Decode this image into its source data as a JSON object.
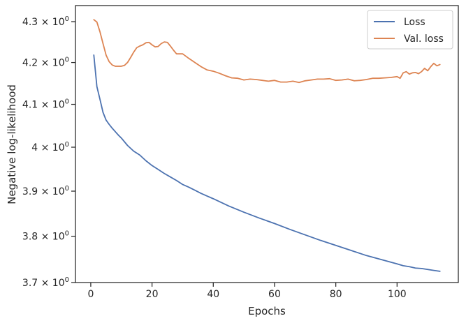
{
  "chart_data": {
    "type": "line",
    "xlabel": "Epochs",
    "ylabel": "Negative log-likelihood",
    "xlim": [
      -5,
      120
    ],
    "ylim": [
      3.7,
      4.34
    ],
    "yscale": "log",
    "grid": false,
    "legend_position": "top-right",
    "xticks": [
      0,
      20,
      40,
      60,
      80,
      100
    ],
    "xtick_labels": [
      "0",
      "20",
      "40",
      "60",
      "80",
      "100"
    ],
    "yticks": [
      {
        "value": 3.7,
        "mantissa": "3.7"
      },
      {
        "value": 3.8,
        "mantissa": "3.8"
      },
      {
        "value": 3.9,
        "mantissa": "3.9"
      },
      {
        "value": 4.0,
        "mantissa": "4"
      },
      {
        "value": 4.1,
        "mantissa": "4.1"
      },
      {
        "value": 4.2,
        "mantissa": "4.2"
      },
      {
        "value": 4.3,
        "mantissa": "4.3"
      }
    ],
    "ytick_base": "× 10",
    "ytick_exponent": "0",
    "series": [
      {
        "name": "Loss",
        "color": "#4c72b0",
        "x": [
          1,
          2,
          3,
          4,
          5,
          6,
          7,
          8,
          9,
          10,
          12,
          14,
          16,
          18,
          20,
          22,
          24,
          26,
          28,
          30,
          32,
          34,
          36,
          38,
          40,
          45,
          50,
          55,
          60,
          65,
          70,
          75,
          80,
          85,
          90,
          95,
          100,
          102,
          104,
          106,
          108,
          110,
          112,
          114
        ],
        "y": [
          4.218,
          4.142,
          4.112,
          4.081,
          4.063,
          4.053,
          4.044,
          4.036,
          4.028,
          4.021,
          4.004,
          3.991,
          3.982,
          3.969,
          3.958,
          3.949,
          3.94,
          3.932,
          3.924,
          3.915,
          3.909,
          3.902,
          3.895,
          3.889,
          3.883,
          3.867,
          3.853,
          3.84,
          3.828,
          3.815,
          3.803,
          3.791,
          3.78,
          3.769,
          3.758,
          3.749,
          3.74,
          3.736,
          3.734,
          3.731,
          3.73,
          3.728,
          3.726,
          3.724
        ]
      },
      {
        "name": "Val. loss",
        "color": "#dd8452",
        "x": [
          1,
          2,
          3,
          4,
          5,
          6,
          7,
          8,
          9,
          10,
          11,
          12,
          13,
          14,
          15,
          16,
          17,
          18,
          19,
          20,
          21,
          22,
          23,
          24,
          25,
          26,
          27,
          28,
          29,
          30,
          32,
          34,
          36,
          38,
          40,
          42,
          44,
          46,
          48,
          50,
          52,
          54,
          56,
          58,
          60,
          62,
          64,
          66,
          68,
          70,
          72,
          74,
          76,
          78,
          80,
          82,
          84,
          86,
          88,
          90,
          92,
          94,
          96,
          98,
          100,
          101,
          102,
          103,
          104,
          105,
          106,
          107,
          108,
          109,
          110,
          111,
          112,
          113,
          114
        ],
        "y": [
          4.305,
          4.299,
          4.275,
          4.246,
          4.218,
          4.202,
          4.194,
          4.191,
          4.191,
          4.191,
          4.193,
          4.2,
          4.212,
          4.225,
          4.236,
          4.24,
          4.243,
          4.248,
          4.249,
          4.243,
          4.238,
          4.239,
          4.246,
          4.25,
          4.249,
          4.24,
          4.23,
          4.221,
          4.221,
          4.221,
          4.21,
          4.2,
          4.19,
          4.182,
          4.179,
          4.174,
          4.168,
          4.163,
          4.162,
          4.158,
          4.16,
          4.159,
          4.157,
          4.155,
          4.157,
          4.153,
          4.153,
          4.155,
          4.152,
          4.156,
          4.158,
          4.16,
          4.16,
          4.161,
          4.157,
          4.158,
          4.16,
          4.156,
          4.157,
          4.159,
          4.162,
          4.162,
          4.163,
          4.164,
          4.166,
          4.162,
          4.175,
          4.178,
          4.172,
          4.175,
          4.176,
          4.173,
          4.178,
          4.186,
          4.18,
          4.19,
          4.198,
          4.192,
          4.195
        ]
      }
    ]
  }
}
